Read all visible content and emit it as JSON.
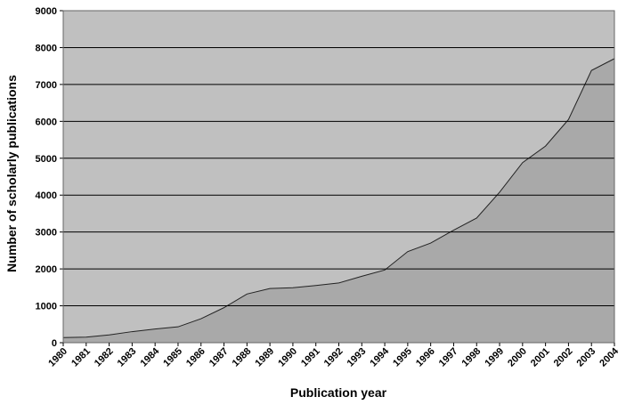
{
  "chart_data": {
    "type": "area",
    "xlabel": "Publication year",
    "ylabel": "Number of scholarly publications",
    "categories": [
      "1980",
      "1981",
      "1982",
      "1983",
      "1984",
      "1985",
      "1986",
      "1987",
      "1988",
      "1989",
      "1990",
      "1991",
      "1992",
      "1993",
      "1994",
      "1995",
      "1996",
      "1997",
      "1998",
      "1999",
      "2000",
      "2001",
      "2002",
      "2003",
      "2004"
    ],
    "values": [
      140,
      150,
      210,
      300,
      370,
      430,
      650,
      950,
      1320,
      1470,
      1490,
      1550,
      1620,
      1800,
      1970,
      2470,
      2700,
      3050,
      3380,
      4080,
      4880,
      5330,
      6050,
      7380,
      7700
    ],
    "color": "#a9a9a9",
    "background": "#c0c0c0",
    "ylim": [
      0,
      9000
    ],
    "yticks": [
      0,
      1000,
      2000,
      3000,
      4000,
      5000,
      6000,
      7000,
      8000,
      9000
    ],
    "grid": true
  }
}
